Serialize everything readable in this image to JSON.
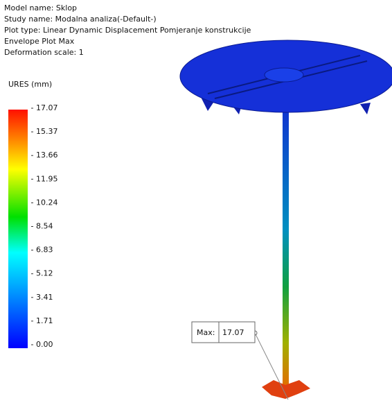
{
  "header": {
    "lines": [
      "Model name: Sklop",
      "Study name: Modalna analiza(-Default-)",
      "Plot type: Linear Dynamic Displacement Pomjeranje konstrukcije",
      "Envelope Plot Max",
      "Deformation scale: 1"
    ]
  },
  "legend": {
    "title": "URES (mm)",
    "ticks": [
      "17.07",
      "15.37",
      "13.66",
      "11.95",
      "10.24",
      "8.54",
      "6.83",
      "5.12",
      "3.41",
      "1.71",
      "0.00"
    ]
  },
  "annotation": {
    "label": "Max:",
    "value": "17.07"
  }
}
